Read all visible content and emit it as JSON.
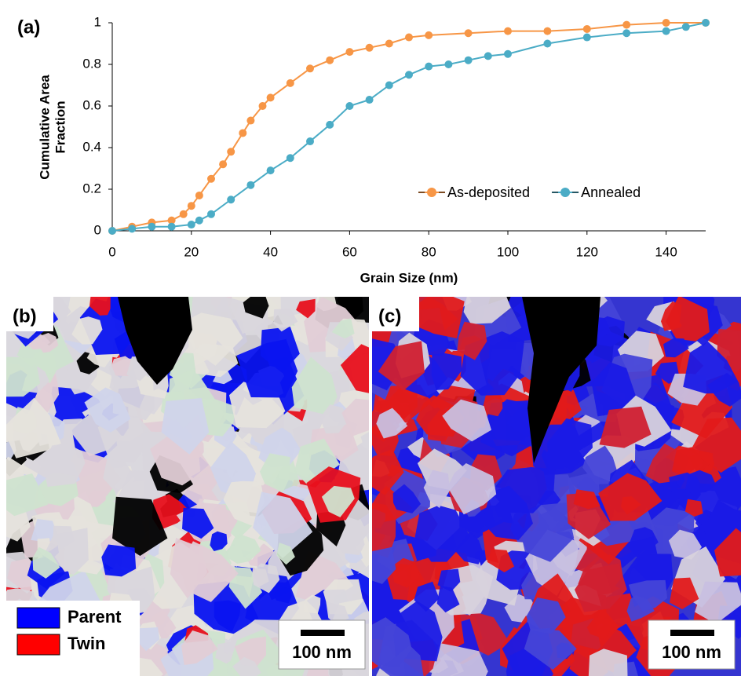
{
  "chart_data": {
    "type": "line",
    "panel_label": "(a)",
    "xlabel": "Grain Size (nm)",
    "ylabel": [
      "Cumulative Area",
      "Fraction"
    ],
    "xlim": [
      0,
      150
    ],
    "xticks": [
      0,
      20,
      40,
      60,
      80,
      100,
      120,
      140
    ],
    "ylim": [
      0,
      1
    ],
    "yticks": [
      0,
      0.2,
      0.4,
      0.6,
      0.8,
      1
    ],
    "legend": "lower right",
    "series": [
      {
        "name": "As-deposited",
        "color": "#f79646",
        "x": [
          0,
          5,
          10,
          15,
          18,
          20,
          22,
          25,
          28,
          30,
          33,
          35,
          38,
          40,
          45,
          50,
          55,
          60,
          65,
          70,
          75,
          80,
          90,
          100,
          110,
          120,
          130,
          140,
          150
        ],
        "values": [
          0,
          0.02,
          0.04,
          0.05,
          0.08,
          0.12,
          0.17,
          0.25,
          0.32,
          0.38,
          0.47,
          0.53,
          0.6,
          0.64,
          0.71,
          0.78,
          0.82,
          0.86,
          0.88,
          0.9,
          0.93,
          0.94,
          0.95,
          0.96,
          0.96,
          0.97,
          0.99,
          1,
          1
        ]
      },
      {
        "name": "Annealed",
        "color": "#4bacc6",
        "x": [
          0,
          5,
          10,
          15,
          20,
          22,
          25,
          30,
          35,
          40,
          45,
          50,
          55,
          60,
          65,
          70,
          75,
          80,
          85,
          90,
          95,
          100,
          110,
          120,
          130,
          140,
          145,
          150
        ],
        "values": [
          0,
          0.01,
          0.02,
          0.02,
          0.03,
          0.05,
          0.08,
          0.15,
          0.22,
          0.29,
          0.35,
          0.43,
          0.51,
          0.6,
          0.63,
          0.7,
          0.75,
          0.79,
          0.8,
          0.82,
          0.84,
          0.85,
          0.9,
          0.93,
          0.95,
          0.96,
          0.98,
          1
        ]
      }
    ]
  },
  "panels": [
    {
      "label": "(b)",
      "scale_bar": "100 nm"
    },
    {
      "label": "(c)",
      "scale_bar": "100 nm"
    }
  ],
  "key": [
    {
      "name": "Parent",
      "color": "#0000ff"
    },
    {
      "name": "Twin",
      "color": "#ff0000"
    }
  ]
}
